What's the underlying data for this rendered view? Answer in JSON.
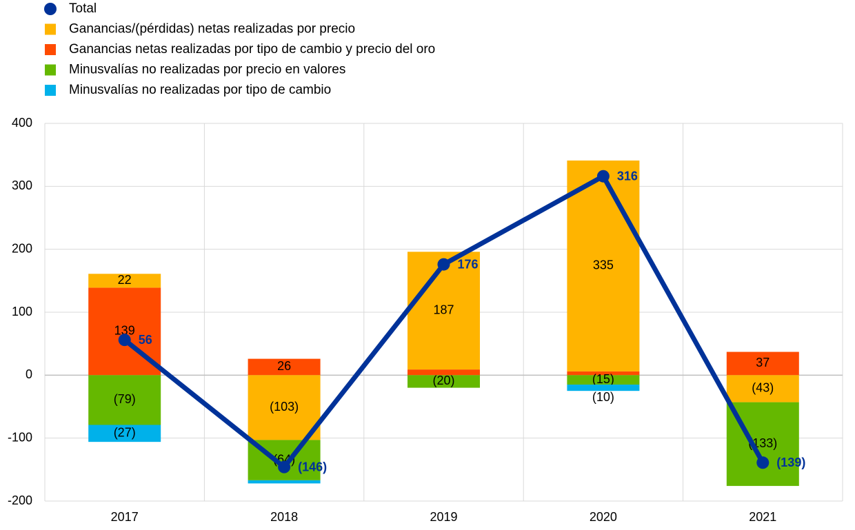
{
  "chart_data": {
    "type": "bar",
    "categories": [
      "2017",
      "2018",
      "2019",
      "2020",
      "2021"
    ],
    "series": [
      {
        "name": "Total",
        "type": "line",
        "color": "#003299",
        "values": [
          56,
          -146,
          176,
          316,
          -139
        ],
        "value_labels": [
          "56",
          "(146)",
          "176",
          "316",
          "(139)"
        ]
      },
      {
        "name": "Ganancias/(pérdidas) netas realizadas por precio",
        "color": "#ffb400",
        "values": [
          22,
          -103,
          187,
          335,
          -43
        ],
        "value_labels": [
          "22",
          "(103)",
          "187",
          "335",
          "(43)"
        ]
      },
      {
        "name": "Ganancias netas realizadas por tipo de cambio y precio del oro",
        "color": "#ff4b00",
        "values": [
          139,
          26,
          9,
          6,
          37
        ],
        "value_labels": [
          "139",
          "26",
          "9",
          "6",
          "37"
        ]
      },
      {
        "name": "Minusvalías no realizadas por precio en valores",
        "color": "#65b800",
        "values": [
          -79,
          -64,
          -20,
          -15,
          -133
        ],
        "value_labels": [
          "(79)",
          "(64)",
          "(20)",
          "(15)",
          "(133)"
        ]
      },
      {
        "name": "Minusvalías no realizadas por tipo de cambio",
        "color": "#00b1ea",
        "values": [
          -27,
          -5,
          0,
          -10,
          0
        ],
        "value_labels": [
          "(27)",
          null,
          null,
          "(10)",
          null
        ]
      }
    ],
    "ylim": [
      -200,
      400
    ],
    "yticks": [
      -200,
      -100,
      0,
      100,
      200,
      300,
      400
    ],
    "grid": true,
    "legend": "top-left"
  }
}
